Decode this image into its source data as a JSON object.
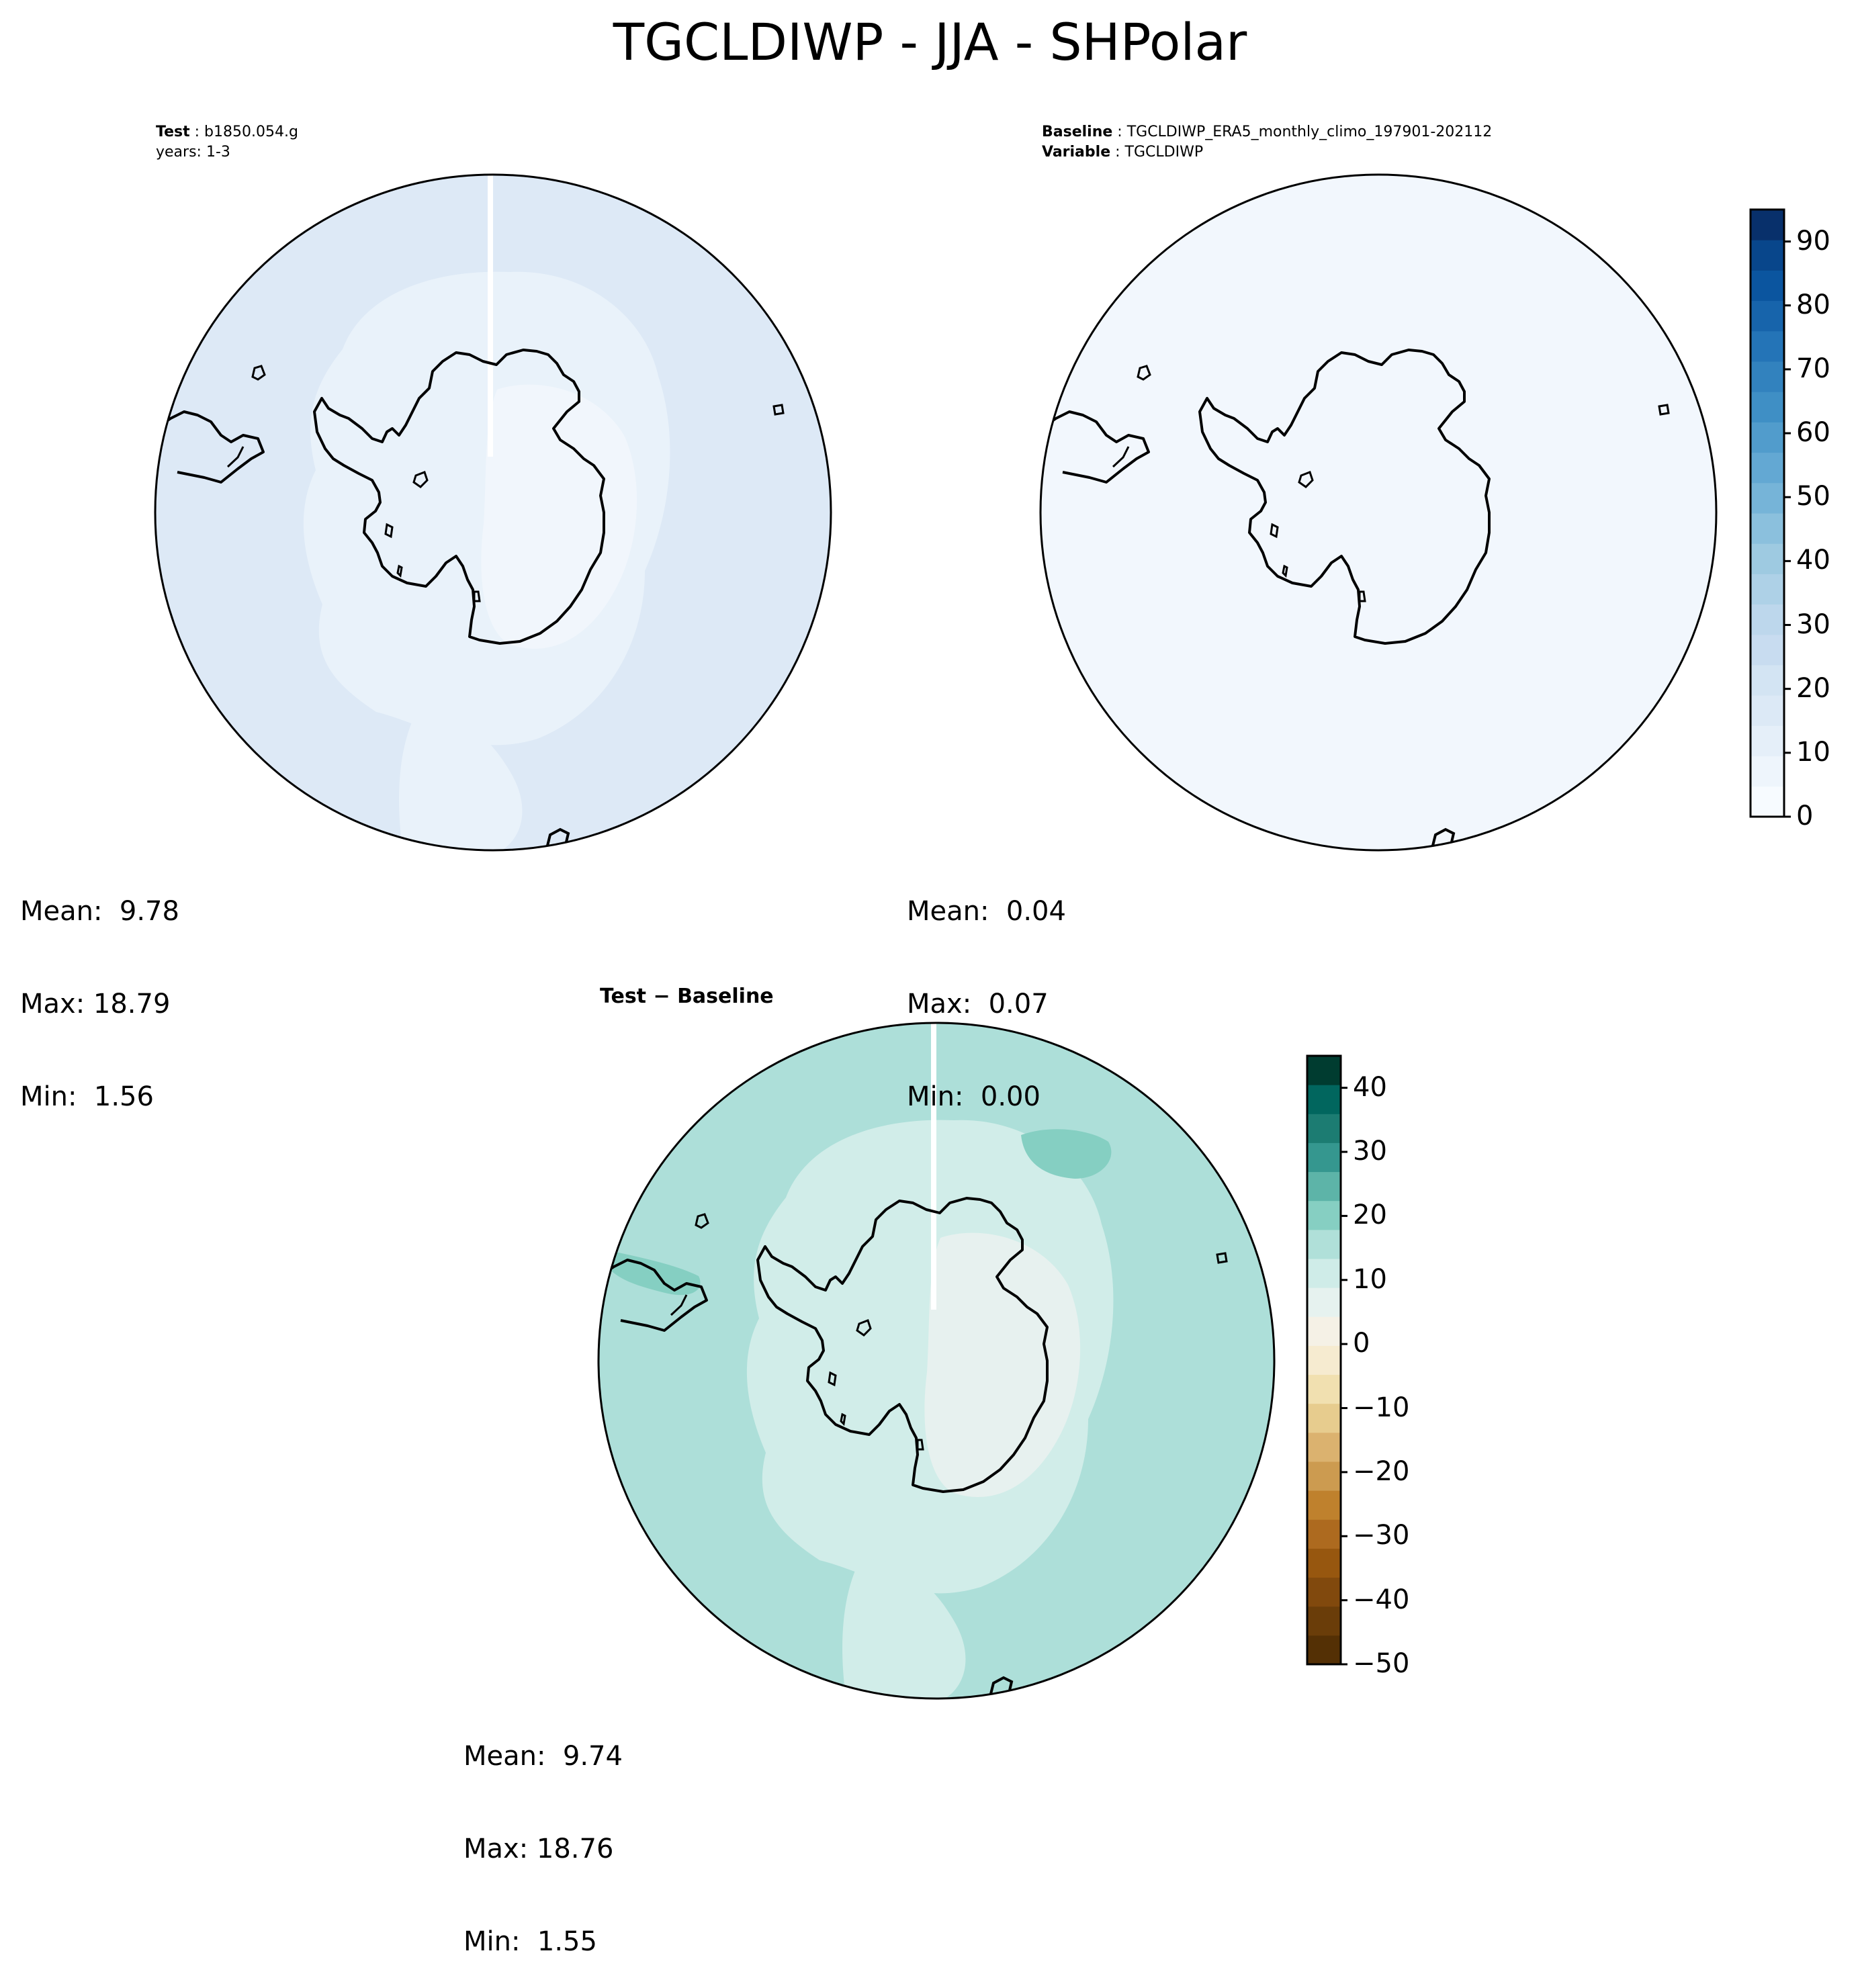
{
  "title": "TGCLDIWP - JJA - SHPolar",
  "panels": {
    "test": {
      "header_label_1": "Test",
      "header_value_1": "b1850.054.g",
      "header_line_2": "years: 1-3",
      "stats": {
        "mean": "Mean:  9.78",
        "max": "Max: 18.79",
        "min": "Min:  1.56"
      }
    },
    "baseline": {
      "header_label_1": "Baseline",
      "header_value_1": "TGCLDIWP_ERA5_monthly_climo_197901-202112",
      "header_label_2": "Variable",
      "header_value_2": "TGCLDIWP",
      "stats": {
        "mean": "Mean:  0.04",
        "max": "Max:  0.07",
        "min": "Min:  0.00"
      }
    },
    "difference": {
      "title_part1": "Test",
      "title_sep": " − ",
      "title_part2": "Baseline",
      "stats": {
        "mean": "Mean:  9.74",
        "max": "Max: 18.76",
        "min": "Min:  1.55"
      }
    }
  },
  "colorbars": {
    "top": {
      "ticks": [
        "0",
        "10",
        "20",
        "30",
        "40",
        "50",
        "60",
        "70",
        "80",
        "90"
      ],
      "range": [
        0,
        95
      ],
      "colors": [
        "#f7fbff",
        "#eef5fc",
        "#e5eff9",
        "#dce9f6",
        "#d3e4f3",
        "#c8dcf0",
        "#bdd7ec",
        "#aed1e7",
        "#9ecae1",
        "#8bc0dd",
        "#76b4d8",
        "#63a8d3",
        "#519ccc",
        "#3f8fc5",
        "#3282be",
        "#2474b7",
        "#1764ab",
        "#0b559f",
        "#08468b",
        "#08306b"
      ]
    },
    "bottom": {
      "ticks": [
        "40",
        "30",
        "20",
        "10",
        "0",
        "−10",
        "−20",
        "−30",
        "−40",
        "−50"
      ],
      "range": [
        -50,
        45
      ],
      "colors": [
        "#543005",
        "#6a3d09",
        "#81490d",
        "#97570f",
        "#ad6a1f",
        "#bf812d",
        "#cc9b50",
        "#dbb26f",
        "#e7cc8e",
        "#f1e0b0",
        "#f6ebd0",
        "#f5f1e6",
        "#e6f2ef",
        "#cfece8",
        "#b0e0d9",
        "#86cfc2",
        "#5db4a8",
        "#35978f",
        "#1c7c72",
        "#01665e",
        "#003c30"
      ]
    }
  },
  "map_colors": {
    "test_ocean": "#dde9f6",
    "test_band": "#e9f2fa",
    "test_interior": "#f1f6fc",
    "baseline_fill": "#f2f7fd",
    "diff_ocean": "#addfd9",
    "diff_band": "#d1ede9",
    "diff_interior": "#e7f1ef",
    "diff_high": "#85cfc2"
  }
}
